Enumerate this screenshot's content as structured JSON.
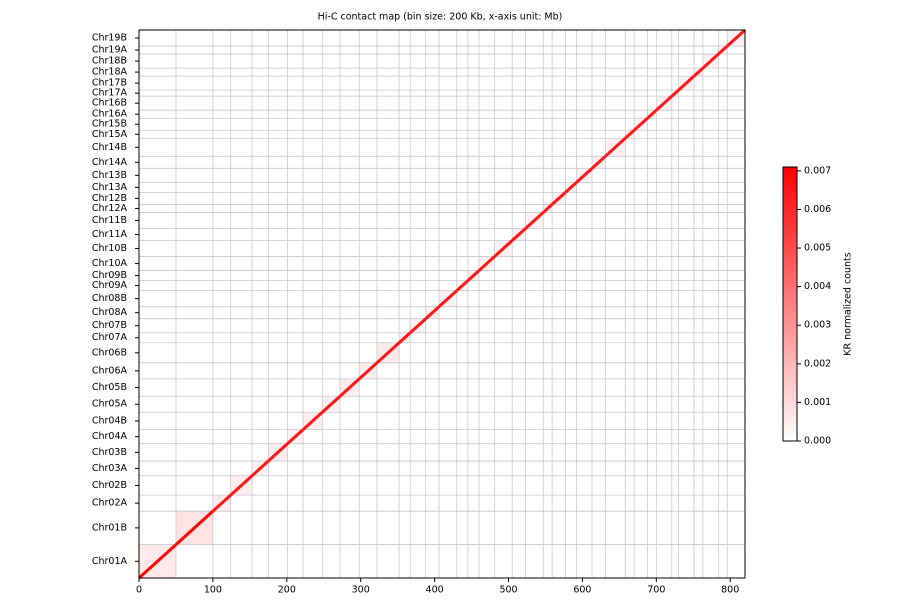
{
  "chart_data": {
    "type": "heatmap",
    "title": "Hi-C contact map (bin size: 200 Kb, x-axis unit: Mb)",
    "xlim": [
      0,
      820
    ],
    "ylim": [
      0,
      820
    ],
    "xticks": [
      0,
      100,
      200,
      300,
      400,
      500,
      600,
      700,
      800
    ],
    "grid": true,
    "chromosomes": [
      "Chr01A",
      "Chr01B",
      "Chr02A",
      "Chr02B",
      "Chr03A",
      "Chr03B",
      "Chr04A",
      "Chr04B",
      "Chr05A",
      "Chr05B",
      "Chr06A",
      "Chr06B",
      "Chr07A",
      "Chr07B",
      "Chr08A",
      "Chr08B",
      "Chr09A",
      "Chr09B",
      "Chr10A",
      "Chr10B",
      "Chr11A",
      "Chr11B",
      "Chr12A",
      "Chr12B",
      "Chr13A",
      "Chr13B",
      "Chr14A",
      "Chr14B",
      "Chr15A",
      "Chr15B",
      "Chr16A",
      "Chr16B",
      "Chr17A",
      "Chr17B",
      "Chr18A",
      "Chr18B",
      "Chr19A",
      "Chr19B"
    ],
    "boundaries": [
      0,
      50,
      100,
      124,
      153,
      175,
      201,
      222,
      248,
      272,
      298,
      322,
      352,
      367,
      388,
      406,
      430,
      445,
      460,
      481,
      505,
      523,
      547,
      559,
      577,
      592,
      613,
      631,
      658,
      670,
      688,
      700,
      721,
      730,
      751,
      763,
      784,
      796,
      820
    ],
    "intra_values": [
      0.0006,
      0.0008,
      0.0005,
      0.0005,
      0.0004,
      0.0005,
      0.0004,
      0.0005,
      0.0004,
      0.0005,
      0.0005,
      0.0006,
      0.0004,
      0.0004,
      0.0004,
      0.0004,
      0.0004,
      0.0004,
      0.0004,
      0.0004,
      0.0004,
      0.0004,
      0.0004,
      0.0004,
      0.0004,
      0.0004,
      0.0004,
      0.0004,
      0.0004,
      0.0004,
      0.0004,
      0.0004,
      0.0004,
      0.0004,
      0.0004,
      0.0004,
      0.0004,
      0.0004
    ],
    "diagonal_values": [
      0.007,
      0.007,
      0.0065,
      0.0065,
      0.0065,
      0.0065,
      0.0065,
      0.0065,
      0.0065,
      0.0065,
      0.0065,
      0.0065,
      0.0065,
      0.0065,
      0.0065,
      0.0065,
      0.0065,
      0.0065,
      0.0065,
      0.0065,
      0.0065,
      0.0065,
      0.0065,
      0.0065,
      0.0065,
      0.0065,
      0.0065,
      0.0065,
      0.0065,
      0.0065,
      0.0065,
      0.0065,
      0.0065,
      0.0065,
      0.0065,
      0.0065,
      0.0065,
      0.0065
    ],
    "colorbar": {
      "label": "KR normalized counts",
      "clim": [
        0,
        0.0071
      ],
      "colors": [
        "#ffffff",
        "#ff0000"
      ],
      "ticks": [
        {
          "value": 0,
          "label": "0.000"
        },
        {
          "value": 0.001,
          "label": "0.001"
        },
        {
          "value": 0.002,
          "label": "0.002"
        },
        {
          "value": 0.003,
          "label": "0.003"
        },
        {
          "value": 0.004,
          "label": "0.004"
        },
        {
          "value": 0.005,
          "label": "0.005"
        },
        {
          "value": 0.006,
          "label": "0.006"
        },
        {
          "value": 0.007,
          "label": "0.007"
        }
      ]
    }
  }
}
